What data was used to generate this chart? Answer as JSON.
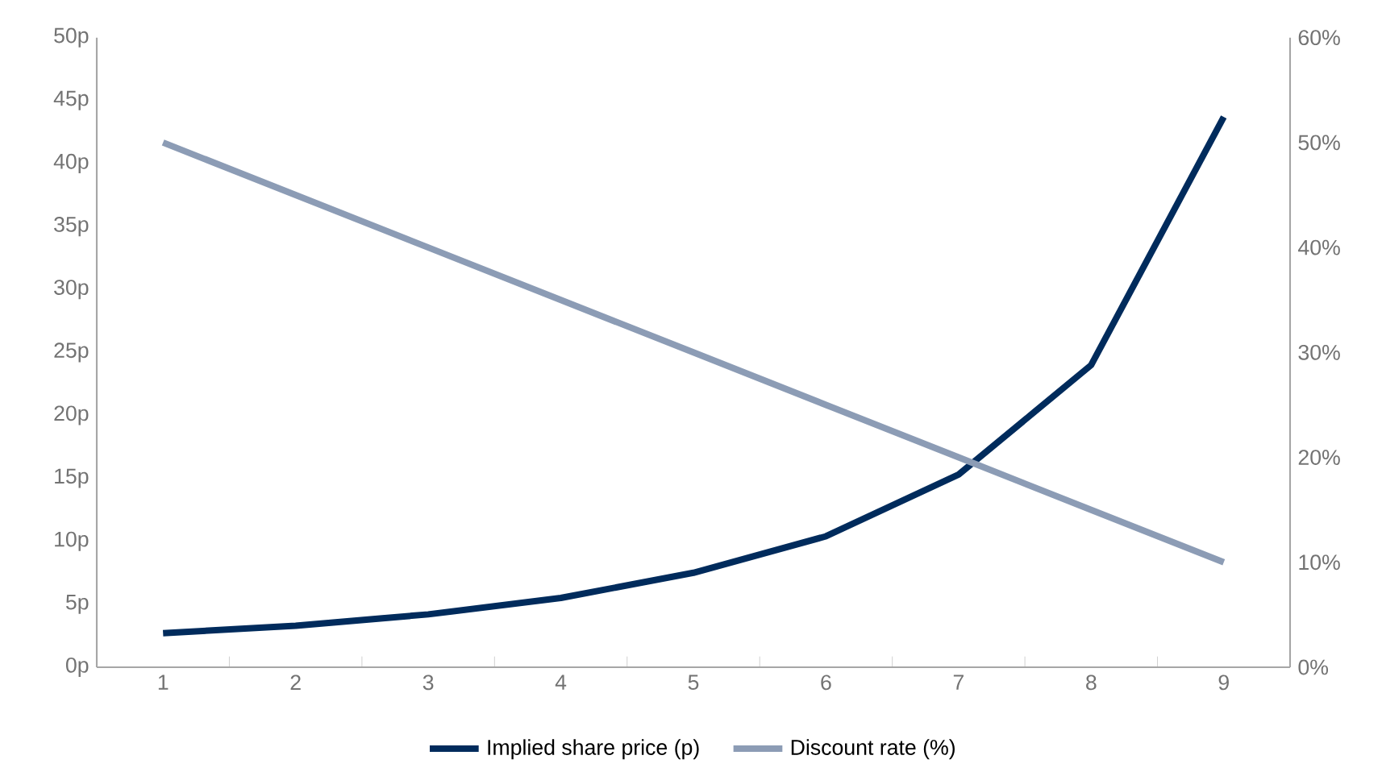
{
  "chart_data": {
    "type": "line",
    "categories": [
      "1",
      "2",
      "3",
      "4",
      "5",
      "6",
      "7",
      "8",
      "9"
    ],
    "series": [
      {
        "name": "Implied share price (p)",
        "color": "#002b5c",
        "values": [
          2.7,
          3.3,
          4.2,
          5.5,
          7.5,
          10.4,
          15.3,
          24.0,
          43.7
        ]
      },
      {
        "name": "Discount rate (%)",
        "color": "#8c9cb5",
        "axis": "y2",
        "values": [
          50,
          45,
          40,
          35,
          30,
          25,
          20,
          15,
          10
        ]
      }
    ],
    "ylim": [
      0,
      50
    ],
    "yticks": [
      {
        "value": 0,
        "label": "0p"
      },
      {
        "value": 5,
        "label": "5p"
      },
      {
        "value": 10,
        "label": "10p"
      },
      {
        "value": 15,
        "label": "15p"
      },
      {
        "value": 20,
        "label": "20p"
      },
      {
        "value": 25,
        "label": "25p"
      },
      {
        "value": 30,
        "label": "30p"
      },
      {
        "value": 35,
        "label": "35p"
      },
      {
        "value": 40,
        "label": "40p"
      },
      {
        "value": 45,
        "label": "45p"
      },
      {
        "value": 50,
        "label": "50p"
      }
    ],
    "y2lim": [
      0,
      60
    ],
    "y2ticks": [
      {
        "value": 0,
        "label": "0%"
      },
      {
        "value": 10,
        "label": "10%"
      },
      {
        "value": 20,
        "label": "20%"
      },
      {
        "value": 30,
        "label": "30%"
      },
      {
        "value": 40,
        "label": "40%"
      },
      {
        "value": 50,
        "label": "50%"
      },
      {
        "value": 60,
        "label": "60%"
      }
    ],
    "legend": "bottom",
    "grid": false,
    "marker": "none",
    "line_style": "solid"
  }
}
